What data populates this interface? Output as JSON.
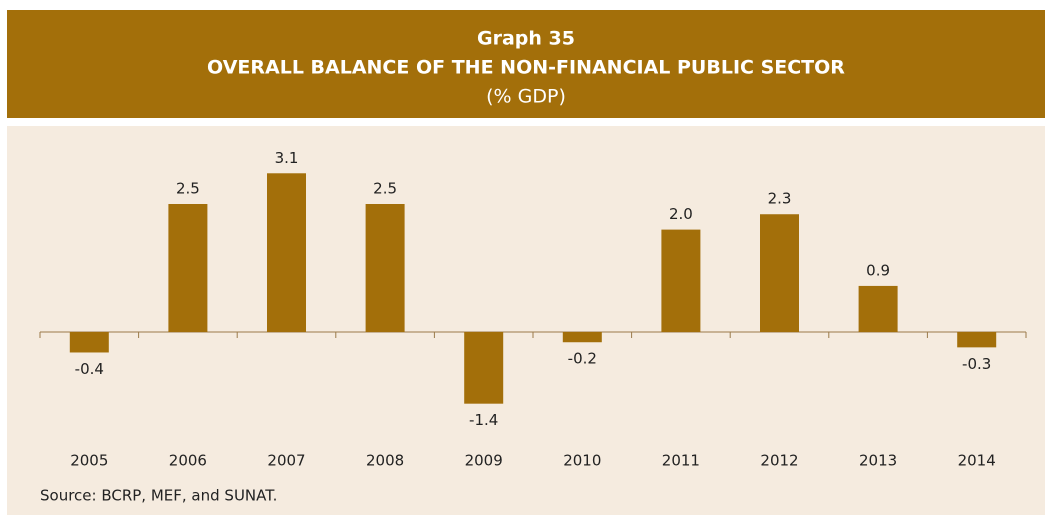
{
  "chart_data": {
    "type": "bar",
    "label": "Graph 35",
    "title": "OVERALL BALANCE OF THE NON-FINANCIAL PUBLIC SECTOR",
    "subtitle": "(% GDP)",
    "categories": [
      "2005",
      "2006",
      "2007",
      "2008",
      "2009",
      "2010",
      "2011",
      "2012",
      "2013",
      "2014"
    ],
    "values": [
      -0.4,
      2.5,
      3.1,
      2.5,
      -1.4,
      -0.2,
      2.0,
      2.3,
      0.9,
      -0.3
    ],
    "value_labels": [
      "-0.4",
      "2.5",
      "3.1",
      "2.5",
      "-1.4",
      "-0.2",
      "2.0",
      "2.3",
      "0.9",
      "-0.3"
    ],
    "color": "#a36f0a",
    "source": "Source: BCRP, MEF, and SUNAT."
  }
}
